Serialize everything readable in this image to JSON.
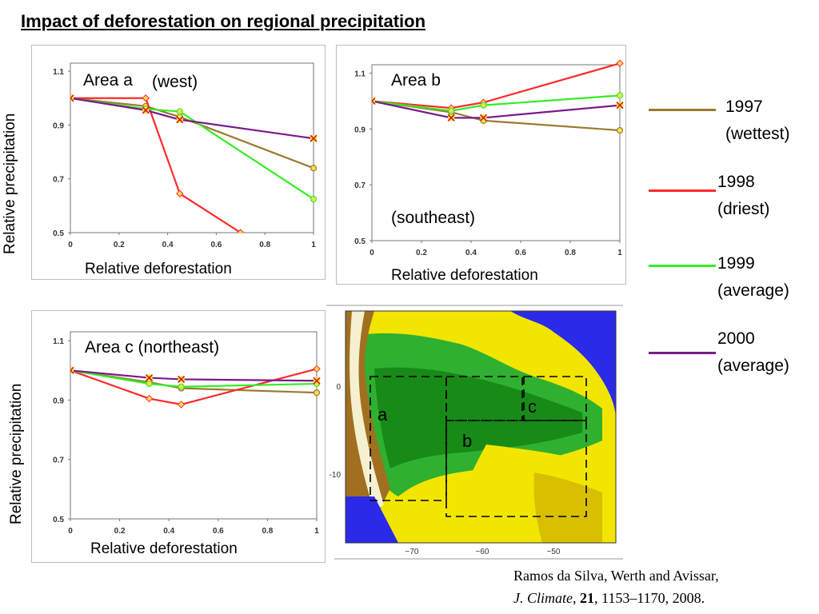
{
  "title": "Impact of deforestation on regional precipitation",
  "colors": {
    "1997": "#9a7a2e",
    "1998": "#ff2a2a",
    "1999": "#33ee22",
    "2000": "#7a1a8a",
    "frame": "#bdbdbd"
  },
  "axis_labels": {
    "ylabel_a": "Relative precipitation",
    "ylabel_c": "Relative precipitation",
    "xlabel_a": "Relative deforestation",
    "xlabel_b": "Relative deforestation",
    "xlabel_c": "Relative deforestation"
  },
  "legend": [
    {
      "year": "1997",
      "desc": "(wettest)",
      "color": "#9a7a2e"
    },
    {
      "year": "1998",
      "desc": "(driest)",
      "color": "#ff2a2a"
    },
    {
      "year": "1999",
      "desc": "(average)",
      "color": "#33ee22"
    },
    {
      "year": "2000",
      "desc": "(average)",
      "color": "#7a1a8a"
    }
  ],
  "map": {
    "lon_ticks": [
      "−70",
      "−60",
      "−50"
    ],
    "lat_ticks": [
      "0",
      "-10"
    ],
    "region_labels": [
      "a",
      "b",
      "c"
    ]
  },
  "citation": {
    "line1": "Ramos da Silva, Werth and Avissar,",
    "journal": "J. Climate",
    "sep1": ", ",
    "volume": "21",
    "rest": ", 1153–1170, 2008."
  },
  "chart_data": [
    {
      "type": "line",
      "panel": "a",
      "label": "Area a",
      "label2": "(west)",
      "xlim": [
        0,
        1
      ],
      "ylim": [
        0.5,
        1.13
      ],
      "xticks": [
        "0",
        "0.2",
        "0.4",
        "0.6",
        "0.8",
        "1"
      ],
      "yticks": [
        "0.5",
        "0.7",
        "0.9",
        "1.1"
      ],
      "series": [
        {
          "name": "1997",
          "x": [
            0,
            0.31,
            0.45,
            1
          ],
          "y": [
            1.0,
            0.97,
            0.93,
            0.74
          ]
        },
        {
          "name": "1998",
          "x": [
            0,
            0.31,
            0.45,
            0.7
          ],
          "y": [
            1.0,
            1.0,
            0.645,
            0.5
          ]
        },
        {
          "name": "1999",
          "x": [
            0,
            0.31,
            0.45,
            1
          ],
          "y": [
            1.0,
            0.96,
            0.95,
            0.625
          ]
        },
        {
          "name": "2000",
          "x": [
            0,
            0.31,
            0.45,
            1
          ],
          "y": [
            1.0,
            0.955,
            0.92,
            0.85
          ]
        }
      ]
    },
    {
      "type": "line",
      "panel": "b",
      "label": "Area b",
      "label2": "(southeast)",
      "xlim": [
        0,
        1
      ],
      "ylim": [
        0.5,
        1.13
      ],
      "xticks": [
        "0",
        "0.2",
        "0.4",
        "0.6",
        "0.8",
        "1"
      ],
      "yticks": [
        "0.5",
        "0.7",
        "0.9",
        "1.1"
      ],
      "series": [
        {
          "name": "1997",
          "x": [
            0,
            0.32,
            0.45,
            1
          ],
          "y": [
            1.0,
            0.96,
            0.93,
            0.895
          ]
        },
        {
          "name": "1998",
          "x": [
            0,
            0.32,
            0.45,
            1
          ],
          "y": [
            1.0,
            0.975,
            0.995,
            1.135
          ]
        },
        {
          "name": "1999",
          "x": [
            0,
            0.32,
            0.45,
            1
          ],
          "y": [
            1.0,
            0.965,
            0.985,
            1.02
          ]
        },
        {
          "name": "2000",
          "x": [
            0,
            0.32,
            0.45,
            1
          ],
          "y": [
            1.0,
            0.94,
            0.94,
            0.985
          ]
        }
      ]
    },
    {
      "type": "line",
      "panel": "c",
      "label": "Area c (northeast)",
      "label2": "",
      "xlim": [
        0,
        1
      ],
      "ylim": [
        0.5,
        1.13
      ],
      "xticks": [
        "0",
        "0.2",
        "0.4",
        "0.6",
        "0.8",
        "1"
      ],
      "yticks": [
        "0.5",
        "0.7",
        "0.9",
        "1.1"
      ],
      "series": [
        {
          "name": "1997",
          "x": [
            0,
            0.32,
            0.45,
            1
          ],
          "y": [
            1.0,
            0.96,
            0.94,
            0.925
          ]
        },
        {
          "name": "1998",
          "x": [
            0,
            0.32,
            0.45,
            1
          ],
          "y": [
            1.0,
            0.905,
            0.885,
            1.005
          ]
        },
        {
          "name": "1999",
          "x": [
            0,
            0.32,
            0.45,
            1
          ],
          "y": [
            1.0,
            0.955,
            0.945,
            0.955
          ]
        },
        {
          "name": "2000",
          "x": [
            0,
            0.32,
            0.45,
            1
          ],
          "y": [
            1.0,
            0.975,
            0.97,
            0.965
          ]
        }
      ]
    }
  ]
}
